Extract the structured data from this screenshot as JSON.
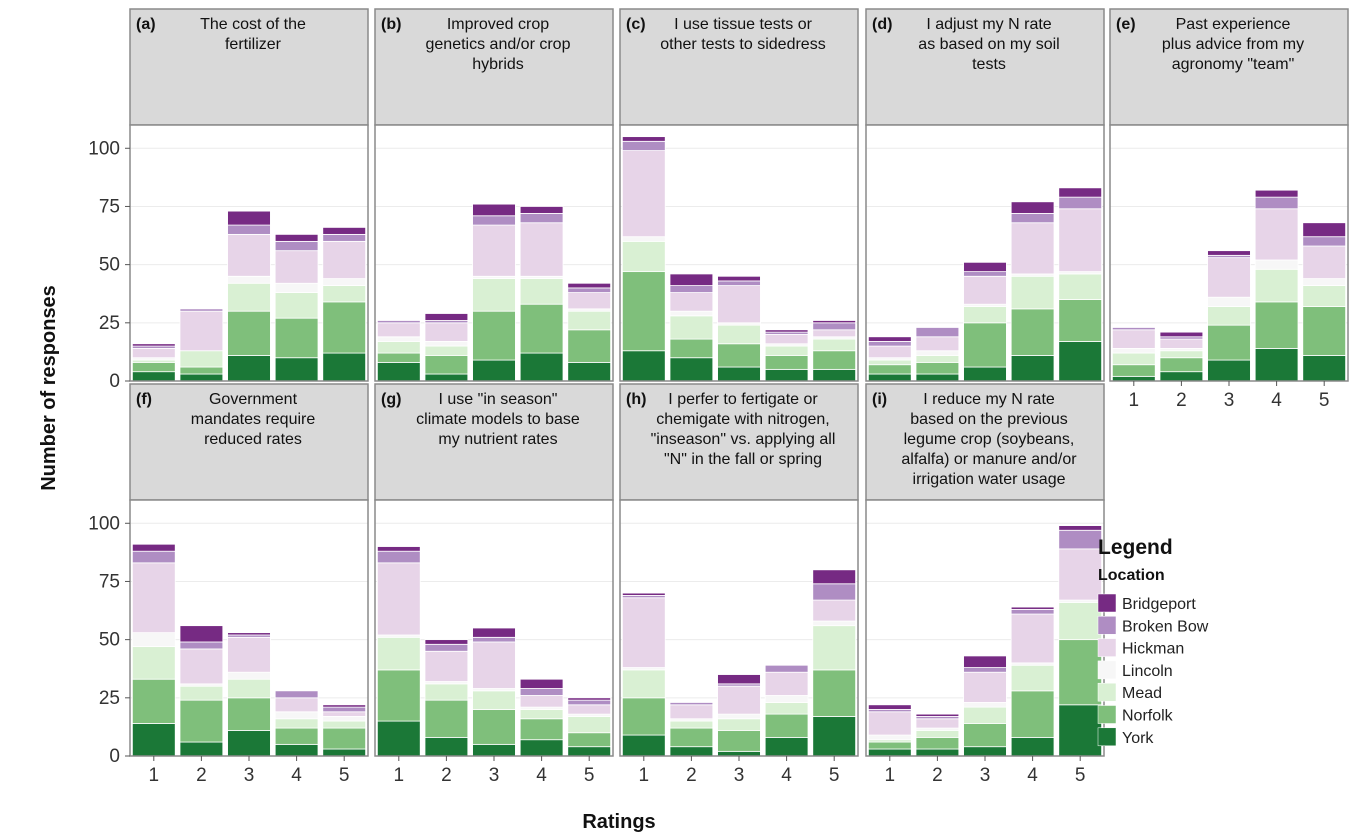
{
  "chart_data": {
    "type": "bar",
    "stacked": true,
    "xlabel": "Ratings",
    "ylabel": "Number of responses",
    "ylim": [
      0,
      110
    ],
    "yticks": [
      0,
      25,
      50,
      75,
      100
    ],
    "categories": [
      "1",
      "2",
      "3",
      "4",
      "5"
    ],
    "legend": {
      "title": "Legend",
      "subtitle": "Location",
      "placement": "right",
      "entries": [
        "Bridgeport",
        "Broken Bow",
        "Hickman",
        "Lincoln",
        "Mead",
        "Norfolk",
        "York"
      ]
    },
    "colors": {
      "Bridgeport": "#762a83",
      "Broken Bow": "#af8dc3",
      "Hickman": "#e7d4e8",
      "Lincoln": "#f7f7f7",
      "Mead": "#d9f0d3",
      "Norfolk": "#7fbf7b",
      "York": "#1b7837"
    },
    "panels": [
      {
        "tag": "(a)",
        "title_lines": [
          "The cost of the",
          "fertilizer"
        ],
        "stacks": [
          [
            1,
            1,
            4,
            1,
            1,
            4,
            4
          ],
          [
            0,
            1,
            17,
            0,
            7,
            3,
            3
          ],
          [
            6,
            4,
            18,
            3,
            12,
            19,
            11
          ],
          [
            3,
            4,
            14,
            4,
            11,
            17,
            10
          ],
          [
            3,
            3,
            16,
            3,
            7,
            22,
            12
          ]
        ]
      },
      {
        "tag": "(b)",
        "title_lines": [
          "Improved crop",
          "genetics and/or crop",
          "hybrids"
        ],
        "stacks": [
          [
            0,
            1,
            6,
            2,
            5,
            4,
            8
          ],
          [
            3,
            1,
            8,
            2,
            4,
            8,
            3
          ],
          [
            5,
            4,
            22,
            1,
            14,
            21,
            9
          ],
          [
            3,
            4,
            23,
            1,
            11,
            21,
            12
          ],
          [
            2,
            2,
            7,
            1,
            8,
            14,
            8
          ]
        ]
      },
      {
        "tag": "(c)",
        "title_lines": [
          "I use tissue tests or",
          "other tests to sidedress"
        ],
        "stacks": [
          [
            2,
            4,
            37,
            2,
            13,
            34,
            13
          ],
          [
            5,
            3,
            8,
            2,
            10,
            8,
            10
          ],
          [
            2,
            2,
            16,
            1,
            8,
            10,
            6
          ],
          [
            1,
            1,
            4,
            1,
            4,
            6,
            5
          ],
          [
            1,
            3,
            3,
            1,
            5,
            8,
            5
          ]
        ]
      },
      {
        "tag": "(d)",
        "title_lines": [
          "I adjust my N rate",
          "as based on my soil",
          "tests"
        ],
        "stacks": [
          [
            2,
            2,
            5,
            1,
            2,
            4,
            3
          ],
          [
            0,
            4,
            6,
            2,
            3,
            5,
            3
          ],
          [
            4,
            2,
            12,
            1,
            7,
            19,
            6
          ],
          [
            5,
            4,
            22,
            1,
            14,
            20,
            11
          ],
          [
            4,
            5,
            27,
            1,
            11,
            18,
            17
          ]
        ]
      },
      {
        "tag": "(e)",
        "title_lines": [
          "Past experience",
          "plus advice from my",
          "agronomy \"team\""
        ],
        "stacks": [
          [
            0,
            1,
            8,
            2,
            5,
            5,
            2
          ],
          [
            2,
            1,
            4,
            1,
            3,
            6,
            4
          ],
          [
            2,
            1,
            17,
            4,
            8,
            15,
            9
          ],
          [
            3,
            5,
            22,
            4,
            14,
            20,
            14
          ],
          [
            6,
            4,
            14,
            3,
            9,
            21,
            11
          ]
        ]
      },
      {
        "tag": "(f)",
        "title_lines": [
          "Government",
          "mandates require",
          "reduced rates"
        ],
        "stacks": [
          [
            3,
            5,
            30,
            6,
            14,
            19,
            14
          ],
          [
            7,
            3,
            15,
            1,
            6,
            18,
            6
          ],
          [
            1,
            1,
            15,
            3,
            8,
            14,
            11
          ],
          [
            0,
            3,
            6,
            3,
            4,
            7,
            5
          ],
          [
            1,
            2,
            2,
            2,
            3,
            9,
            3
          ]
        ]
      },
      {
        "tag": "(g)",
        "title_lines": [
          "I use \"in season\"",
          "climate models to base",
          "my nutrient rates"
        ],
        "stacks": [
          [
            2,
            5,
            31,
            1,
            14,
            22,
            15
          ],
          [
            2,
            3,
            13,
            1,
            7,
            16,
            8
          ],
          [
            4,
            2,
            20,
            1,
            8,
            15,
            5
          ],
          [
            4,
            3,
            5,
            1,
            4,
            9,
            7
          ],
          [
            1,
            2,
            4,
            1,
            7,
            6,
            4
          ]
        ]
      },
      {
        "tag": "(h)",
        "title_lines": [
          "I perfer to fertigate or",
          "chemigate with nitrogen,",
          "\"inseason\" vs. applying all",
          "\"N\" in the fall or spring"
        ],
        "stacks": [
          [
            1,
            1,
            30,
            1,
            12,
            16,
            9
          ],
          [
            0,
            1,
            6,
            1,
            3,
            8,
            4
          ],
          [
            4,
            1,
            12,
            2,
            5,
            9,
            2
          ],
          [
            0,
            3,
            10,
            3,
            5,
            10,
            8
          ],
          [
            6,
            7,
            9,
            2,
            19,
            20,
            17
          ]
        ]
      },
      {
        "tag": "(i)",
        "title_lines": [
          "I reduce my N rate",
          "based on the previous",
          "legume crop (soybeans,",
          "alfalfa) or manure and/or",
          "irrigation water usage"
        ],
        "stacks": [
          [
            2,
            1,
            10,
            2,
            1,
            3,
            3
          ],
          [
            1,
            1,
            4,
            1,
            3,
            5,
            3
          ],
          [
            5,
            2,
            13,
            2,
            7,
            10,
            4
          ],
          [
            1,
            2,
            21,
            1,
            11,
            20,
            8
          ],
          [
            2,
            8,
            22,
            1,
            16,
            28,
            22
          ]
        ]
      }
    ]
  }
}
